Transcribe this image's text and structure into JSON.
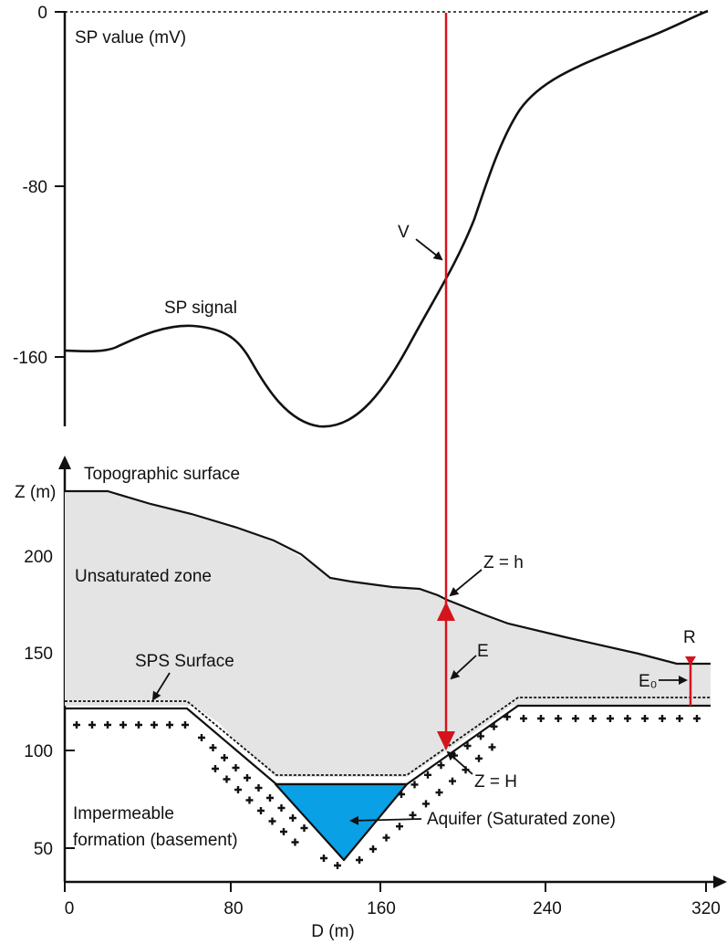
{
  "top_panel": {
    "y_axis_title": "SP value (mV)",
    "y_ticks": [
      "0",
      "-80",
      "-160"
    ],
    "curve_label": "SP signal",
    "point_label": "V"
  },
  "bottom_panel": {
    "y_axis_title": "Z (m)",
    "y_ticks": [
      "200",
      "150",
      "100",
      "50"
    ],
    "x_ticks": [
      "0",
      "80",
      "160",
      "240",
      "320"
    ],
    "x_axis_title": "D (m)",
    "labels": {
      "topographic_surface": "Topographic surface",
      "unsaturated_zone": "Unsaturated zone",
      "sps_surface": "SPS Surface",
      "impermeable_line1": "Impermeable",
      "impermeable_line2": "formation (basement)",
      "aquifer": "Aquifer (Saturated zone)",
      "z_h_top": "Z = h",
      "z_H_bottom": "Z = H",
      "e": "E",
      "e0": "E₀",
      "r": "R"
    }
  },
  "colors": {
    "unsaturated_fill": "#e4e4e4",
    "aquifer_fill": "#0aa0e6",
    "marker_red": "#d4141c",
    "ink": "#111111"
  },
  "icons": [
    "plus-marker-icon",
    "arrow-up-icon",
    "arrow-right-icon"
  ]
}
